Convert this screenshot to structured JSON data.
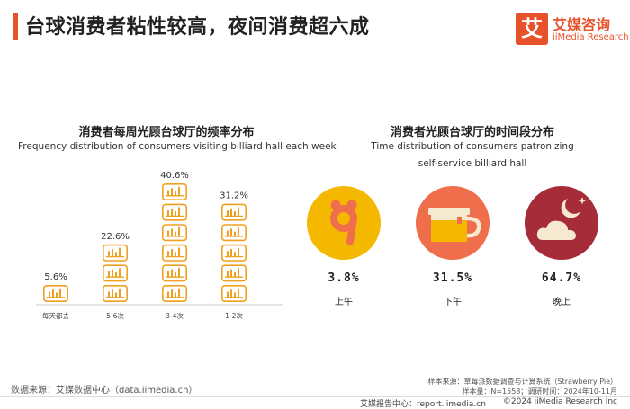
{
  "header": {
    "title": "台球消费者粘性较高，夜间消费超六成",
    "logo_glyph": "艾",
    "logo_cn": "艾媒咨询",
    "logo_en": "iiMedia Research"
  },
  "chart_data": [
    {
      "type": "bar",
      "title": "消费者每周光顾台球厅的频率分布",
      "subtitle": "Frequency distribution of consumers visiting billiard hall each week",
      "categories": [
        "每天都去",
        "5-6次",
        "3-4次",
        "1-2次"
      ],
      "values": [
        5.6,
        22.6,
        40.6,
        31.2
      ],
      "value_labels": [
        "5.6%",
        "22.6%",
        "40.6%",
        "31.2%"
      ],
      "unit": "%",
      "bar_color": "#f0a020"
    },
    {
      "type": "pie",
      "title": "消费者光顾台球厅的时间段分布",
      "subtitle_line1": "Time distribution of consumers patronizing",
      "subtitle_line2": "self-service billiard hall",
      "categories": [
        "上午",
        "下午",
        "晚上"
      ],
      "values": [
        3.8,
        31.5,
        64.7
      ],
      "value_labels": [
        "3.8%",
        "31.5%",
        "64.7%"
      ],
      "colors": [
        "#f5b800",
        "#ef6e4b",
        "#a62c3a"
      ],
      "icons": [
        "nine-clock-icon",
        "cup-icon",
        "moon-cloud-icon"
      ]
    }
  ],
  "sources": {
    "left": "数据来源：艾媒数据中心（data.iimedia.cn）",
    "right_line1": "样本来源：草莓派数据调查与计算系统（Strawberry Pie）",
    "right_line2": "样本量：N=1558；调研时间：2024年10-11月"
  },
  "footer": {
    "left": "艾媒报告中心：report.iimedia.cn",
    "right": "©2024  iiMedia Research  Inc"
  }
}
